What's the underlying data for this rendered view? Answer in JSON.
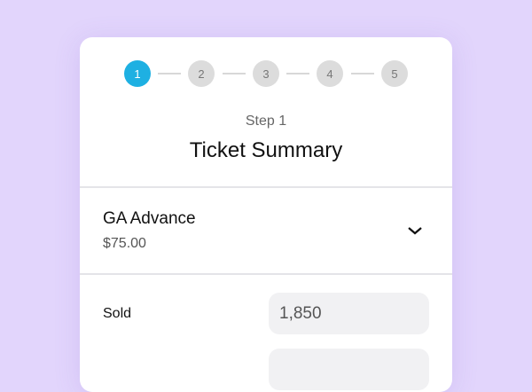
{
  "stepper": {
    "steps": [
      "1",
      "2",
      "3",
      "4",
      "5"
    ],
    "active": 1,
    "accent": "#1eb0e2"
  },
  "header": {
    "step_label": "Step 1",
    "title": "Ticket Summary"
  },
  "ticket": {
    "name": "GA Advance",
    "price": "$75.00"
  },
  "fields": [
    {
      "label": "Sold",
      "value": "1,850"
    },
    {
      "label": "",
      "value": ""
    }
  ]
}
